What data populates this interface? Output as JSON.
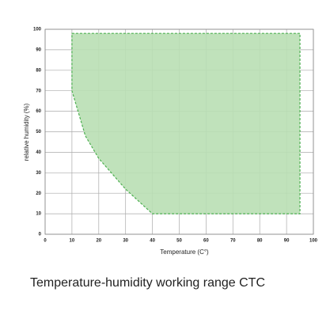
{
  "chart_data": {
    "type": "area",
    "x_label": "Temperature (C°)",
    "y_label": "relative humidity (%)",
    "caption": "Temperature-humidity working range CTC",
    "x": [
      10,
      95,
      95,
      40,
      30,
      20,
      15,
      10
    ],
    "values": [
      98,
      98,
      10,
      10,
      22,
      37,
      48,
      70
    ],
    "color": "#b9dfb4",
    "edge_color": "#4caf50",
    "xlim": [
      0,
      100
    ],
    "xticks": [
      0,
      10,
      20,
      30,
      40,
      50,
      60,
      70,
      80,
      90,
      100
    ],
    "ylim": [
      0,
      100
    ],
    "yticks": [
      0,
      10,
      20,
      30,
      40,
      50,
      60,
      70,
      80,
      90,
      100
    ],
    "grid": true
  }
}
